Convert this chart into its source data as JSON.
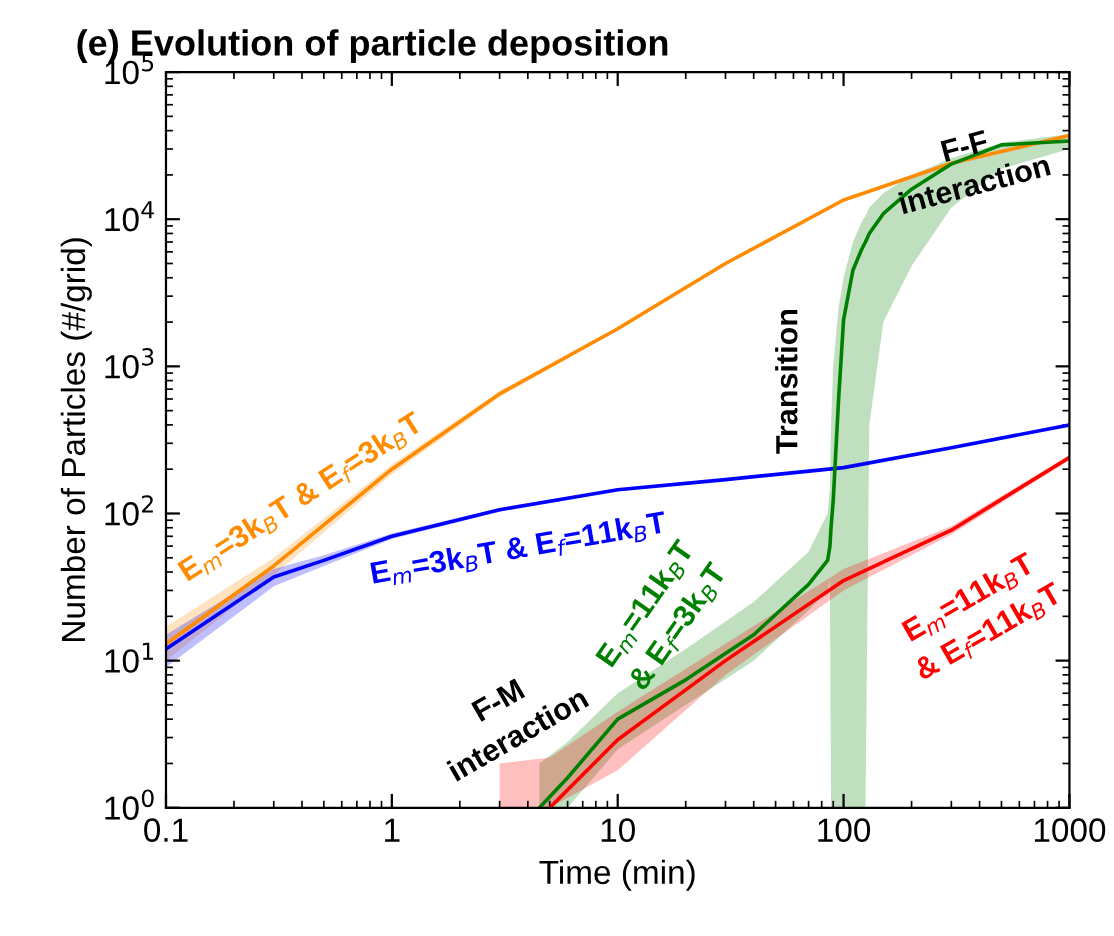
{
  "chart_data": {
    "type": "line",
    "title": "(e) Evolution of particle deposition",
    "xlabel": "Time (min)",
    "ylabel": "Number of Particles (#/grid)",
    "log": "xy",
    "xlim": [
      0.1,
      1000
    ],
    "ylim": [
      1,
      100000
    ],
    "xticks": [
      0.1,
      1,
      10,
      100,
      1000
    ],
    "yticks": [
      {
        "value": 1,
        "label": "10$^{0}$"
      },
      {
        "value": 10,
        "label": "10$^{1}$"
      },
      {
        "value": 100,
        "label": "10$^{2}$"
      },
      {
        "value": 1000,
        "label": "10$^{3}$"
      },
      {
        "value": 10000,
        "label": "10$^{4}$"
      },
      {
        "value": 100000,
        "label": "10$^{5}$"
      }
    ],
    "grid": false,
    "legend": false,
    "marker": "none",
    "line_style": "solid",
    "series": [
      {
        "color": "#ff8c00",
        "x": [
          0.1,
          0.3,
          1,
          3,
          10,
          30,
          100,
          300,
          1000
        ],
        "values": [
          13,
          44,
          200,
          650,
          1800,
          5000,
          13500,
          24000,
          37000
        ],
        "lower": [
          10,
          38,
          185,
          620,
          1750,
          4900,
          13300,
          23700,
          36500
        ],
        "upper": [
          17,
          50,
          215,
          680,
          1850,
          5100,
          13700,
          24300,
          37500
        ]
      },
      {
        "color": "#0000ff",
        "x": [
          0.1,
          0.3,
          0.5,
          1,
          3,
          10,
          30,
          100,
          300,
          1000
        ],
        "values": [
          12,
          37,
          48,
          70,
          106,
          145,
          170,
          205,
          280,
          400
        ],
        "lower": [
          9,
          32,
          44,
          67,
          103,
          142,
          167,
          202,
          277,
          396
        ],
        "upper": [
          15,
          42,
          52,
          73,
          109,
          148,
          173,
          208,
          283,
          404
        ]
      },
      {
        "color": "#008000",
        "x": [
          4.5,
          6,
          10,
          20,
          40,
          70,
          85,
          87,
          88,
          90,
          95,
          100,
          110,
          120,
          125,
          130,
          150,
          200,
          300,
          500,
          1000
        ],
        "values": [
          1,
          1.6,
          4,
          7.4,
          15,
          33,
          48,
          60,
          80,
          123,
          590,
          2070,
          4500,
          6200,
          7000,
          8000,
          10900,
          16000,
          23700,
          32000,
          34000
        ],
        "lower": [
          1,
          1,
          2.5,
          5,
          10,
          22,
          30,
          35,
          1,
          1,
          1,
          1,
          1,
          1,
          1,
          400,
          2000,
          4800,
          12000,
          22000,
          30000
        ],
        "upper": [
          2,
          2.8,
          6,
          12,
          25,
          55,
          100,
          150,
          400,
          1000,
          2500,
          4000,
          7000,
          9500,
          10500,
          12000,
          15000,
          20000,
          26000,
          33000,
          38000
        ]
      },
      {
        "color": "#ff0000",
        "x": [
          3,
          5,
          10,
          30,
          100,
          300,
          1000
        ],
        "values": [
          null,
          1,
          2.9,
          10,
          35,
          77,
          240
        ],
        "lower": [
          1,
          1,
          1.8,
          8,
          30,
          72,
          230
        ],
        "upper": [
          2,
          2.2,
          4.5,
          13,
          42,
          82,
          250
        ]
      }
    ],
    "annotations": [
      "E$_{m}$=3k$_{B}$T & E$_{f}$=3k$_{B}$T",
      "E$_{m}$=3k$_{B}$T & E$_{f}$=11k$_{B}$T",
      "E$_{m}$=11k$_{B}$T\n& E$_{f}$=3k$_{B}$T",
      "E$_{m}$=11k$_{B}$T\n& E$_{f}$=11k$_{B}$T",
      "F-M\ninteraction",
      "Transition",
      "F-F\ninteraction"
    ]
  }
}
